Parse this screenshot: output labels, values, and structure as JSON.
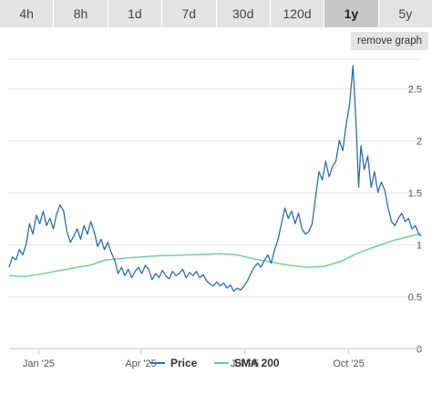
{
  "tabs": [
    {
      "label": "4h",
      "active": false
    },
    {
      "label": "8h",
      "active": false
    },
    {
      "label": "1d",
      "active": false
    },
    {
      "label": "7d",
      "active": false
    },
    {
      "label": "30d",
      "active": false
    },
    {
      "label": "120d",
      "active": false
    },
    {
      "label": "1y",
      "active": true
    },
    {
      "label": "5y",
      "active": false
    }
  ],
  "remove_graph_label": "remove graph",
  "chart_data": {
    "type": "line",
    "x_range": [
      "2024-12-06",
      "2025-12-04"
    ],
    "ylim": [
      0,
      2.5
    ],
    "yticks": [
      0,
      0.5,
      1,
      1.5,
      2,
      2.5
    ],
    "xticks": [
      {
        "date": "2025-01-01",
        "label": "Jan '25"
      },
      {
        "date": "2025-04-01",
        "label": "Apr '25"
      },
      {
        "date": "2025-07-01",
        "label": "Jul '25"
      },
      {
        "date": "2025-10-01",
        "label": "Oct '25"
      }
    ],
    "grid": true,
    "legend_position": "bottom-center",
    "series": [
      {
        "name": "Price",
        "color": "#2f6fa8",
        "points": [
          [
            "2024-12-06",
            0.78
          ],
          [
            "2024-12-09",
            0.88
          ],
          [
            "2024-12-12",
            0.85
          ],
          [
            "2024-12-15",
            0.95
          ],
          [
            "2024-12-18",
            0.9
          ],
          [
            "2024-12-21",
            1.0
          ],
          [
            "2024-12-24",
            1.2
          ],
          [
            "2024-12-27",
            1.1
          ],
          [
            "2024-12-30",
            1.28
          ],
          [
            "2025-01-02",
            1.2
          ],
          [
            "2025-01-05",
            1.32
          ],
          [
            "2025-01-08",
            1.18
          ],
          [
            "2025-01-11",
            1.25
          ],
          [
            "2025-01-14",
            1.15
          ],
          [
            "2025-01-17",
            1.3
          ],
          [
            "2025-01-20",
            1.38
          ],
          [
            "2025-01-23",
            1.32
          ],
          [
            "2025-01-26",
            1.12
          ],
          [
            "2025-01-29",
            1.02
          ],
          [
            "2025-02-01",
            1.08
          ],
          [
            "2025-02-04",
            1.15
          ],
          [
            "2025-02-07",
            1.05
          ],
          [
            "2025-02-10",
            1.18
          ],
          [
            "2025-02-13",
            1.1
          ],
          [
            "2025-02-16",
            1.22
          ],
          [
            "2025-02-19",
            1.12
          ],
          [
            "2025-02-22",
            0.98
          ],
          [
            "2025-02-25",
            1.05
          ],
          [
            "2025-02-28",
            0.95
          ],
          [
            "2025-03-03",
            1.02
          ],
          [
            "2025-03-06",
            0.92
          ],
          [
            "2025-03-09",
            0.85
          ],
          [
            "2025-03-12",
            0.72
          ],
          [
            "2025-03-15",
            0.78
          ],
          [
            "2025-03-18",
            0.7
          ],
          [
            "2025-03-21",
            0.76
          ],
          [
            "2025-03-24",
            0.68
          ],
          [
            "2025-03-27",
            0.74
          ],
          [
            "2025-03-30",
            0.78
          ],
          [
            "2025-04-02",
            0.72
          ],
          [
            "2025-04-05",
            0.8
          ],
          [
            "2025-04-08",
            0.76
          ],
          [
            "2025-04-11",
            0.66
          ],
          [
            "2025-04-14",
            0.72
          ],
          [
            "2025-04-17",
            0.68
          ],
          [
            "2025-04-20",
            0.75
          ],
          [
            "2025-04-23",
            0.7
          ],
          [
            "2025-04-26",
            0.67
          ],
          [
            "2025-04-29",
            0.74
          ],
          [
            "2025-05-02",
            0.7
          ],
          [
            "2025-05-05",
            0.72
          ],
          [
            "2025-05-08",
            0.76
          ],
          [
            "2025-05-11",
            0.68
          ],
          [
            "2025-05-14",
            0.73
          ],
          [
            "2025-05-17",
            0.7
          ],
          [
            "2025-05-20",
            0.74
          ],
          [
            "2025-05-23",
            0.68
          ],
          [
            "2025-05-26",
            0.71
          ],
          [
            "2025-05-29",
            0.65
          ],
          [
            "2025-06-01",
            0.62
          ],
          [
            "2025-06-04",
            0.6
          ],
          [
            "2025-06-07",
            0.64
          ],
          [
            "2025-06-10",
            0.6
          ],
          [
            "2025-06-13",
            0.63
          ],
          [
            "2025-06-16",
            0.58
          ],
          [
            "2025-06-19",
            0.61
          ],
          [
            "2025-06-22",
            0.55
          ],
          [
            "2025-06-25",
            0.58
          ],
          [
            "2025-06-28",
            0.56
          ],
          [
            "2025-07-01",
            0.6
          ],
          [
            "2025-07-04",
            0.65
          ],
          [
            "2025-07-07",
            0.72
          ],
          [
            "2025-07-10",
            0.78
          ],
          [
            "2025-07-13",
            0.82
          ],
          [
            "2025-07-16",
            0.78
          ],
          [
            "2025-07-19",
            0.85
          ],
          [
            "2025-07-22",
            0.9
          ],
          [
            "2025-07-25",
            0.82
          ],
          [
            "2025-07-28",
            0.95
          ],
          [
            "2025-07-31",
            1.05
          ],
          [
            "2025-08-03",
            1.2
          ],
          [
            "2025-08-06",
            1.35
          ],
          [
            "2025-08-09",
            1.25
          ],
          [
            "2025-08-12",
            1.32
          ],
          [
            "2025-08-15",
            1.2
          ],
          [
            "2025-08-18",
            1.3
          ],
          [
            "2025-08-21",
            1.15
          ],
          [
            "2025-08-24",
            1.1
          ],
          [
            "2025-08-27",
            1.12
          ],
          [
            "2025-08-30",
            1.2
          ],
          [
            "2025-09-02",
            1.45
          ],
          [
            "2025-09-05",
            1.7
          ],
          [
            "2025-09-08",
            1.62
          ],
          [
            "2025-09-11",
            1.8
          ],
          [
            "2025-09-14",
            1.65
          ],
          [
            "2025-09-17",
            1.75
          ],
          [
            "2025-09-20",
            1.8
          ],
          [
            "2025-09-23",
            2.0
          ],
          [
            "2025-09-26",
            1.9
          ],
          [
            "2025-09-29",
            2.15
          ],
          [
            "2025-10-02",
            2.35
          ],
          [
            "2025-10-05",
            2.72
          ],
          [
            "2025-10-08",
            2.1
          ],
          [
            "2025-10-10",
            1.55
          ],
          [
            "2025-10-12",
            1.95
          ],
          [
            "2025-10-15",
            1.72
          ],
          [
            "2025-10-18",
            1.85
          ],
          [
            "2025-10-21",
            1.55
          ],
          [
            "2025-10-24",
            1.7
          ],
          [
            "2025-10-27",
            1.5
          ],
          [
            "2025-10-30",
            1.6
          ],
          [
            "2025-11-02",
            1.52
          ],
          [
            "2025-11-05",
            1.35
          ],
          [
            "2025-11-08",
            1.22
          ],
          [
            "2025-11-11",
            1.18
          ],
          [
            "2025-11-14",
            1.25
          ],
          [
            "2025-11-17",
            1.3
          ],
          [
            "2025-11-20",
            1.22
          ],
          [
            "2025-11-23",
            1.25
          ],
          [
            "2025-11-26",
            1.15
          ],
          [
            "2025-11-29",
            1.18
          ],
          [
            "2025-12-02",
            1.1
          ],
          [
            "2025-12-04",
            1.08
          ]
        ]
      },
      {
        "name": "SMA 200",
        "color": "#66d28f",
        "points": [
          [
            "2024-12-06",
            0.7
          ],
          [
            "2024-12-20",
            0.69
          ],
          [
            "2025-01-05",
            0.72
          ],
          [
            "2025-01-25",
            0.76
          ],
          [
            "2025-02-15",
            0.8
          ],
          [
            "2025-03-01",
            0.85
          ],
          [
            "2025-03-20",
            0.87
          ],
          [
            "2025-04-15",
            0.89
          ],
          [
            "2025-05-15",
            0.9
          ],
          [
            "2025-06-10",
            0.91
          ],
          [
            "2025-06-25",
            0.9
          ],
          [
            "2025-07-10",
            0.86
          ],
          [
            "2025-07-25",
            0.83
          ],
          [
            "2025-08-10",
            0.8
          ],
          [
            "2025-08-25",
            0.78
          ],
          [
            "2025-09-10",
            0.79
          ],
          [
            "2025-09-25",
            0.84
          ],
          [
            "2025-10-10",
            0.92
          ],
          [
            "2025-10-25",
            0.98
          ],
          [
            "2025-11-10",
            1.04
          ],
          [
            "2025-11-25",
            1.08
          ],
          [
            "2025-12-04",
            1.1
          ]
        ]
      }
    ]
  }
}
